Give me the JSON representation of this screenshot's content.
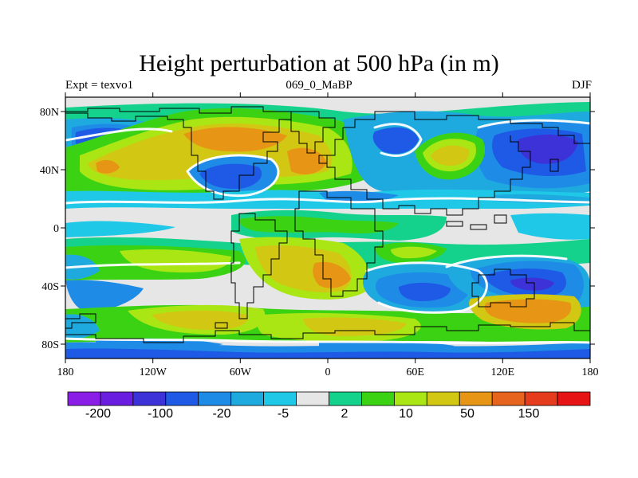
{
  "title": "Height perturbation at 500 hPa (in m)",
  "subtitle_left": "Expt = texvo1",
  "subtitle_center": "069_0_MaBP",
  "subtitle_right": "DJF",
  "y_ticks": [
    "80N",
    "40N",
    "0",
    "40S",
    "80S"
  ],
  "x_ticks": [
    "180",
    "120W",
    "60W",
    "0",
    "60E",
    "120E",
    "180"
  ],
  "colorbar": {
    "colors": [
      "#8a1ee6",
      "#6a1ee0",
      "#3c32d8",
      "#1e5ae6",
      "#1e8ce6",
      "#1eaade",
      "#1ec8e6",
      "#e6e6e6",
      "#14d28c",
      "#3cd214",
      "#aae614",
      "#d2c814",
      "#e69614",
      "#e6641e",
      "#e63c1e",
      "#e61414"
    ],
    "labels": [
      "-200",
      "-100",
      "-20",
      "-5",
      "2",
      "10",
      "50",
      "150"
    ]
  }
}
